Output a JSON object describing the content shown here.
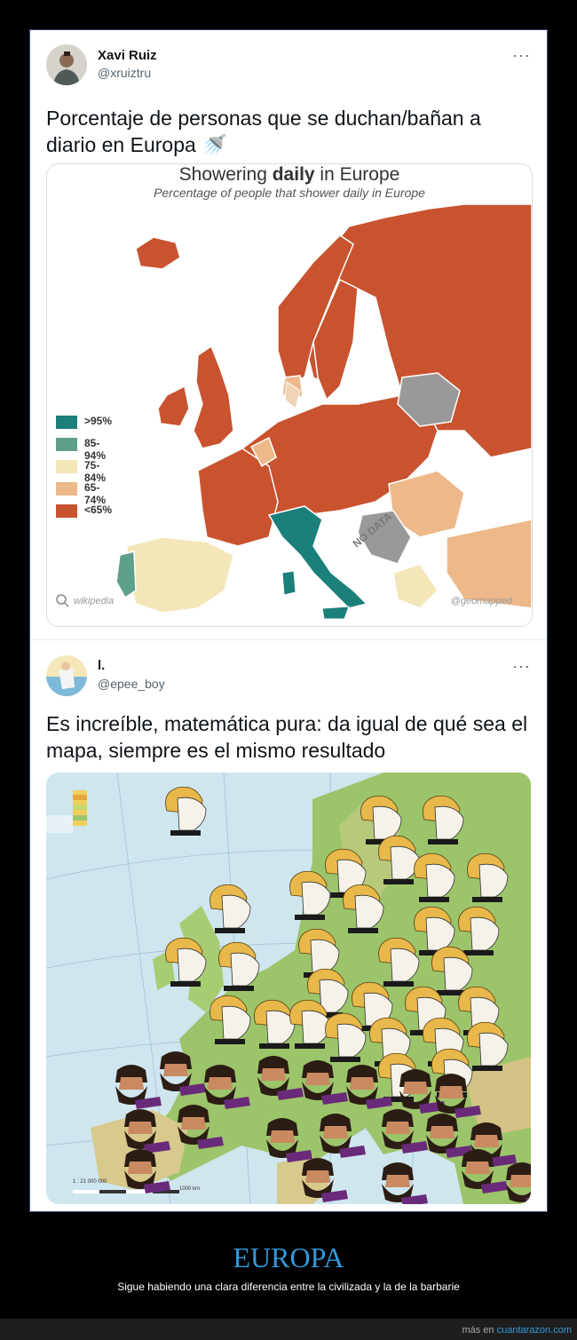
{
  "tweet1": {
    "name": "Xavi Ruiz",
    "handle": "@xruiztru",
    "more": "···",
    "text": "Porcentaje de personas que se duchan/bañan a diario en Europa 🚿",
    "card": {
      "title_plain": "Showering ",
      "title_bold": "daily",
      "title_rest": " in Europe",
      "subtitle": "Percentage of people that shower daily in Europe",
      "legend": [
        {
          "label": ">95%",
          "color": "#1b7f7a"
        },
        {
          "label": "85-94%",
          "color": "#5fa08a"
        },
        {
          "label": "75-84%",
          "color": "#f3e6b8"
        },
        {
          "label": "65-74%",
          "color": "#edb98a"
        },
        {
          "label": "<65%",
          "color": "#c8532e"
        }
      ],
      "no_data": "NO DATA",
      "credit_left": "wikipedia",
      "credit_right": "@geomapped"
    }
  },
  "tweet2": {
    "name": "l.",
    "handle": "@epee_boy",
    "more": "···",
    "text": "Es increíble, matemática pura: da igual de qué sea el mapa, siempre es el mismo resultado",
    "map_scale_label": "1 : 21 000 000",
    "map_km_label": "1000 km"
  },
  "footer": {
    "title": "EUROPA",
    "subtitle": "Sigue habiendo una clara diferencia entre la civilizada y la de la barbarie",
    "site_prefix": "más en ",
    "site_link": "cuantarazon.com"
  }
}
